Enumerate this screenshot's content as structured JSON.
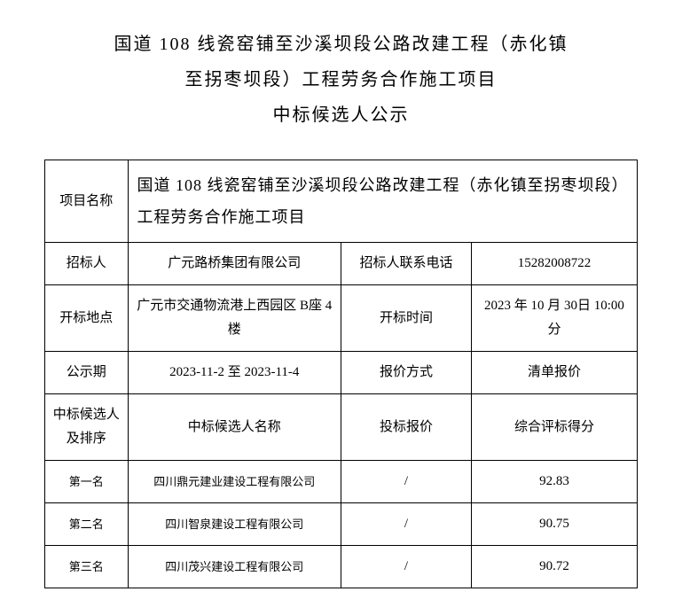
{
  "title": {
    "line1": "国道 108 线瓷窑铺至沙溪坝段公路改建工程（赤化镇",
    "line2": "至拐枣坝段）工程劳务合作施工项目",
    "line3": "中标候选人公示"
  },
  "table": {
    "projectNameLabel": "项目名称",
    "projectNameValue": "国道 108 线瓷窑铺至沙溪坝段公路改建工程（赤化镇至拐枣坝段）工程劳务合作施工项目",
    "tendererLabel": "招标人",
    "tendererValue": "广元路桥集团有限公司",
    "tendererPhoneLabel": "招标人联系电话",
    "tendererPhoneValue": "15282008722",
    "bidLocationLabel": "开标地点",
    "bidLocationValue": "广元市交通物流港上西园区 B座 4 楼",
    "bidTimeLabel": "开标时间",
    "bidTimeValue": "2023 年 10 月 30日 10:00 分",
    "publicityPeriodLabel": "公示期",
    "publicityPeriodValue": "2023-11-2 至 2023-11-4",
    "quoteMethodLabel": "报价方式",
    "quoteMethodValue": "清单报价",
    "candidateRankLabel": "中标候选人及排序",
    "candidateNameLabel": "中标候选人名称",
    "bidPriceLabel": "投标报价",
    "scoreLabel": "综合评标得分",
    "rank1Label": "第一名",
    "rank1Name": "四川鼎元建业建设工程有限公司",
    "rank1Price": "/",
    "rank1Score": "92.83",
    "rank2Label": "第二名",
    "rank2Name": "四川智泉建设工程有限公司",
    "rank2Price": "/",
    "rank2Score": "90.75",
    "rank3Label": "第三名",
    "rank3Name": "四川茂兴建设工程有限公司",
    "rank3Price": "/",
    "rank3Score": "90.72"
  }
}
